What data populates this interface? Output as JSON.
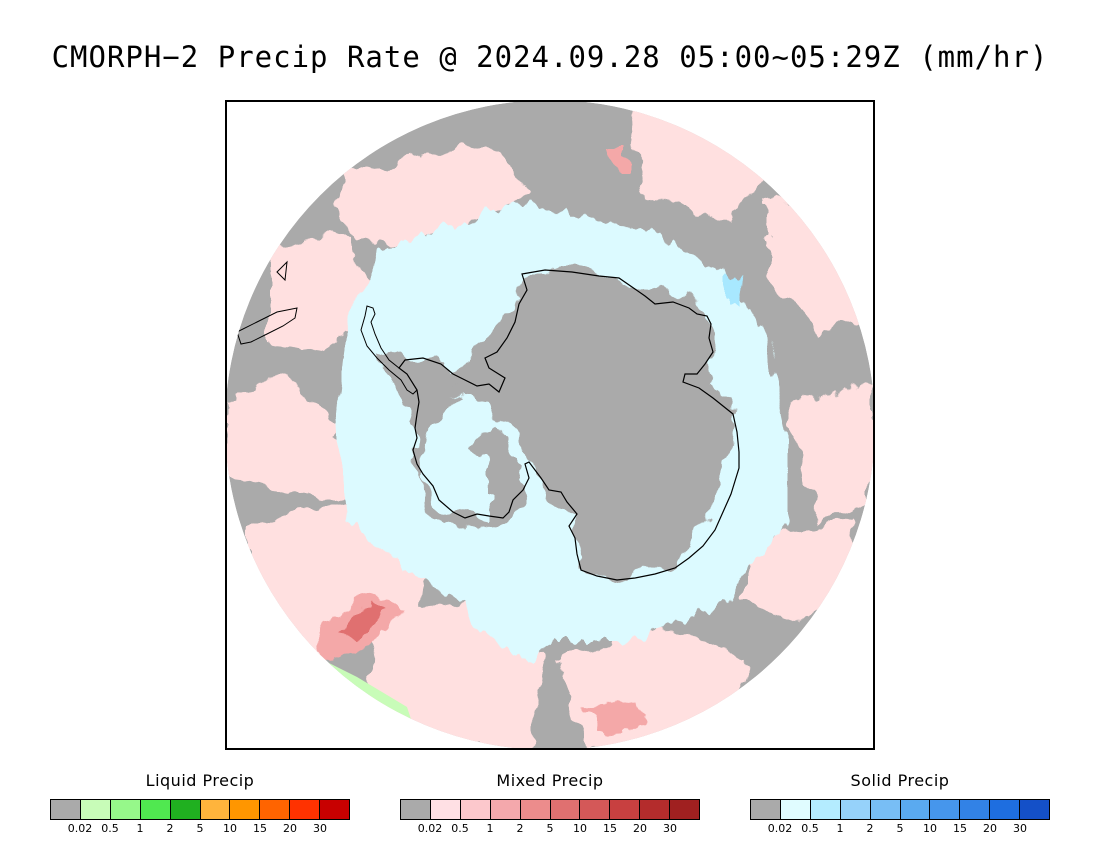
{
  "title": "CMORPH−2 Precip Rate @ 2024.09.28 05:00~05:29Z (mm/hr)",
  "map": {
    "projection": "south-polar-stereographic",
    "region": "Antarctica and Southern Ocean",
    "colors": {
      "no_precip": "#aaaaaa",
      "mixed_light": "#ffe0e0",
      "mixed_mid": "#f4a8a8",
      "mixed_heavy": "#e07070",
      "solid_light": "#dcfaff",
      "solid_mid": "#a8e8ff",
      "liquid_light": "#c8fcb8",
      "coastline": "#000000"
    }
  },
  "legends": [
    {
      "title": "Liquid Precip",
      "colors": [
        "#aaaaaa",
        "#c8fcb8",
        "#96f88a",
        "#50e850",
        "#20b020",
        "#ffb43c",
        "#ff9600",
        "#ff6400",
        "#ff3200",
        "#c80000"
      ],
      "ticks": [
        "0.02",
        "0.5",
        "1",
        "2",
        "5",
        "10",
        "15",
        "20",
        "30"
      ]
    },
    {
      "title": "Mixed Precip",
      "colors": [
        "#aaaaaa",
        "#ffe0e4",
        "#fcc8cc",
        "#f4a8ac",
        "#ec8c8c",
        "#e07070",
        "#d45858",
        "#c84040",
        "#b42c2c",
        "#a02020"
      ],
      "ticks": [
        "0.02",
        "0.5",
        "1",
        "2",
        "5",
        "10",
        "15",
        "20",
        "30"
      ]
    },
    {
      "title": "Solid Precip",
      "colors": [
        "#aaaaaa",
        "#e0fcff",
        "#b4ecff",
        "#96d2fa",
        "#78bef5",
        "#5aaaf0",
        "#4696ec",
        "#3282e6",
        "#1e6ee0",
        "#1450c8"
      ],
      "ticks": [
        "0.02",
        "0.5",
        "1",
        "2",
        "5",
        "10",
        "15",
        "20",
        "30"
      ]
    }
  ]
}
